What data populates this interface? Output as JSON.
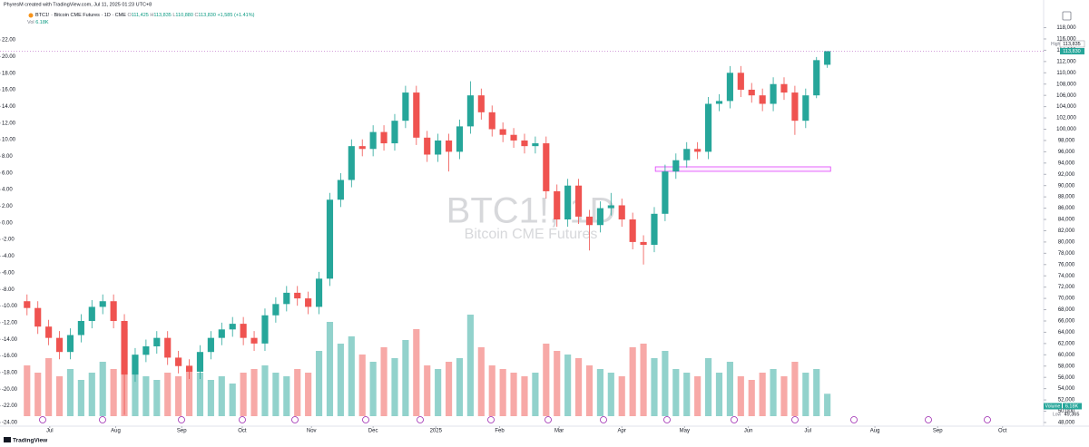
{
  "chart_data": {
    "type": "candlestick",
    "attribution": "PhyresM created with TradingView.com, Jul 11, 2025 01:23 UTC+8",
    "legend": {
      "symbol": "BTC1! · Bitcoin CME Futures · 1D · CME",
      "ohlc": [
        {
          "key": "O",
          "value": "111,425"
        },
        {
          "key": "H",
          "value": "113,835"
        },
        {
          "key": "L",
          "value": "110,880"
        },
        {
          "key": "C",
          "value": "113,830"
        }
      ],
      "change": "+1,585 (+1.41%)",
      "volume_key": "Vol",
      "volume_value": "6.18K"
    },
    "watermark": {
      "symbol": "BTC1!, 1D",
      "name": "Bitcoin CME Futures"
    },
    "price_labels": {
      "high_key": "High",
      "high_value": "113,835",
      "last_value": "113,830",
      "volume_key": "Volume",
      "volume_value": "6.18K",
      "low_key": "Low",
      "low_value": "49,365"
    },
    "logo": "TradingView",
    "up_color": "#26a69a",
    "down_color": "#ef5350",
    "open": [
      69500,
      68300,
      65000,
      63000,
      60500,
      63500,
      66000,
      68500,
      69500,
      66000,
      56500,
      60000,
      61500,
      63000,
      59500,
      58000,
      57000,
      60500,
      63000,
      64500,
      65500,
      63000,
      62000,
      67000,
      69000,
      71000,
      70000,
      68500,
      73500,
      87500,
      91000,
      97000,
      96500,
      99500,
      97500,
      101500,
      106500,
      98500,
      95500,
      98000,
      96000,
      100500,
      106000,
      103000,
      100000,
      99000,
      98000,
      97000,
      97500,
      89000,
      84000,
      90000,
      84500,
      83000,
      86000,
      86500,
      84000,
      80000,
      79500,
      85000,
      92500,
      94500,
      96500,
      96000,
      104500,
      105000,
      110000,
      107000,
      106000,
      104500,
      108000,
      106500,
      101500,
      106000,
      111425
    ],
    "high": [
      70700,
      69500,
      66200,
      64200,
      64700,
      67200,
      69700,
      70700,
      70700,
      67200,
      61200,
      62700,
      64200,
      64200,
      60700,
      59200,
      61700,
      64200,
      65700,
      66700,
      66700,
      64200,
      68200,
      70200,
      72200,
      72200,
      71200,
      74700,
      88700,
      92200,
      98200,
      98200,
      100700,
      100700,
      102700,
      107700,
      107700,
      99700,
      99200,
      99200,
      101700,
      108500,
      107200,
      104200,
      101200,
      100200,
      99200,
      98700,
      98700,
      90200,
      91200,
      91200,
      85700,
      87200,
      88700,
      87700,
      85200,
      81200,
      86200,
      93700,
      95700,
      97700,
      97700,
      105700,
      106200,
      111200,
      111200,
      108200,
      107200,
      109200,
      109200,
      107700,
      107200,
      112800,
      113835
    ],
    "low": [
      67000,
      63700,
      61700,
      59200,
      59200,
      62200,
      64700,
      67200,
      64700,
      49365,
      55200,
      58700,
      60200,
      58200,
      56700,
      55700,
      55700,
      59200,
      61700,
      63200,
      61700,
      60700,
      60700,
      65700,
      67700,
      68700,
      67200,
      67200,
      72200,
      86200,
      89700,
      95200,
      95200,
      96200,
      96200,
      100200,
      97200,
      94200,
      94200,
      92500,
      94700,
      99200,
      101700,
      98700,
      97700,
      96700,
      95700,
      95700,
      87700,
      82700,
      82700,
      83200,
      78500,
      81700,
      84700,
      82700,
      78700,
      76000,
      78200,
      83700,
      91200,
      93200,
      94700,
      94700,
      103200,
      103700,
      105700,
      104700,
      103200,
      103200,
      105200,
      99000,
      100200,
      105500,
      110880
    ],
    "close": [
      68300,
      65000,
      63000,
      60500,
      63500,
      66000,
      68500,
      69500,
      66000,
      56500,
      60000,
      61500,
      63000,
      59500,
      58000,
      57000,
      60500,
      63000,
      64500,
      65500,
      63000,
      62000,
      67000,
      69000,
      71000,
      70000,
      68500,
      73500,
      87500,
      91000,
      97000,
      96500,
      99500,
      97500,
      101500,
      106500,
      98500,
      95500,
      98000,
      96000,
      100500,
      106000,
      103000,
      100000,
      99000,
      98000,
      97000,
      97500,
      89000,
      84000,
      90000,
      84500,
      83000,
      86000,
      86500,
      84000,
      80000,
      79500,
      85000,
      92500,
      94500,
      96500,
      96000,
      104500,
      105000,
      110000,
      107000,
      106000,
      104500,
      108000,
      106500,
      101500,
      106000,
      112245,
      113830
    ],
    "volume": [
      14000,
      12000,
      16000,
      11000,
      13000,
      10000,
      12000,
      15000,
      13000,
      24000,
      17000,
      11000,
      10000,
      12000,
      11000,
      14000,
      12000,
      10000,
      11000,
      9000,
      12000,
      13000,
      14000,
      12000,
      11000,
      13000,
      12000,
      18000,
      26000,
      20000,
      22000,
      17000,
      15000,
      19000,
      16000,
      21000,
      24000,
      14000,
      13000,
      15000,
      16000,
      28000,
      19000,
      14000,
      13000,
      12000,
      11000,
      12000,
      20000,
      18000,
      17000,
      16000,
      14000,
      13000,
      12000,
      11000,
      19000,
      20000,
      16000,
      18000,
      13000,
      12000,
      11000,
      16000,
      12000,
      15000,
      11000,
      10000,
      12000,
      13000,
      11000,
      15000,
      12000,
      13000,
      6180
    ],
    "volume_ylim": [
      0,
      30000
    ],
    "xlim": [
      -2.5,
      94
    ],
    "xticks": [
      {
        "value": 2.1,
        "label": "Jul"
      },
      {
        "value": 8.2,
        "label": "Aug"
      },
      {
        "value": 14.3,
        "label": "Sep"
      },
      {
        "value": 19.9,
        "label": "Oct"
      },
      {
        "value": 26.3,
        "label": "Nov"
      },
      {
        "value": 32.0,
        "label": "Dec"
      },
      {
        "value": 37.8,
        "label": "2025"
      },
      {
        "value": 43.7,
        "label": "Feb"
      },
      {
        "value": 49.2,
        "label": "Mar"
      },
      {
        "value": 55.0,
        "label": "Apr"
      },
      {
        "value": 60.8,
        "label": "May"
      },
      {
        "value": 66.7,
        "label": "Jun"
      },
      {
        "value": 72.2,
        "label": "Jul"
      },
      {
        "value": 78.4,
        "label": "Aug"
      },
      {
        "value": 84.2,
        "label": "Sep"
      },
      {
        "value": 90.2,
        "label": "Oct"
      }
    ],
    "ylim": [
      47350,
      119050
    ],
    "yticks": [
      {
        "value": 48000,
        "label": "48,000"
      },
      {
        "value": 50000,
        "label": "50,000"
      },
      {
        "value": 52000,
        "label": "52,000"
      },
      {
        "value": 54000,
        "label": "54,000"
      },
      {
        "value": 56000,
        "label": "56,000"
      },
      {
        "value": 58000,
        "label": "58,000"
      },
      {
        "value": 60000,
        "label": "60,000"
      },
      {
        "value": 62000,
        "label": "62,000"
      },
      {
        "value": 64000,
        "label": "64,000"
      },
      {
        "value": 66000,
        "label": "66,000"
      },
      {
        "value": 68000,
        "label": "68,000"
      },
      {
        "value": 70000,
        "label": "70,000"
      },
      {
        "value": 72000,
        "label": "72,000"
      },
      {
        "value": 74000,
        "label": "74,000"
      },
      {
        "value": 76000,
        "label": "76,000"
      },
      {
        "value": 78000,
        "label": "78,000"
      },
      {
        "value": 80000,
        "label": "80,000"
      },
      {
        "value": 82000,
        "label": "82,000"
      },
      {
        "value": 84000,
        "label": "84,000"
      },
      {
        "value": 86000,
        "label": "86,000"
      },
      {
        "value": 88000,
        "label": "88,000"
      },
      {
        "value": 90000,
        "label": "90,000"
      },
      {
        "value": 92000,
        "label": "92,000"
      },
      {
        "value": 94000,
        "label": "94,000"
      },
      {
        "value": 96000,
        "label": "96,000"
      },
      {
        "value": 98000,
        "label": "98,000"
      },
      {
        "value": 100000,
        "label": "100,000"
      },
      {
        "value": 102000,
        "label": "102,000"
      },
      {
        "value": 104000,
        "label": "104,000"
      },
      {
        "value": 106000,
        "label": "106,000"
      },
      {
        "value": 108000,
        "label": "108,000"
      },
      {
        "value": 110000,
        "label": "110,000"
      },
      {
        "value": 112000,
        "label": "112,000"
      },
      {
        "value": 114000,
        "label": "114,000"
      },
      {
        "value": 116000,
        "label": "116,000"
      },
      {
        "value": 118000,
        "label": "118,000"
      }
    ],
    "y2lim": [
      -24.44,
      24.18
    ],
    "y2ticks": [
      {
        "value": -24,
        "label": "-24.00"
      },
      {
        "value": -22,
        "label": "-22.00"
      },
      {
        "value": -20,
        "label": "-20.00"
      },
      {
        "value": -18,
        "label": "-18.00"
      },
      {
        "value": -16,
        "label": "-16.00"
      },
      {
        "value": -14,
        "label": "-14.00"
      },
      {
        "value": -12,
        "label": "-12.00"
      },
      {
        "value": -10,
        "label": "-10.00"
      },
      {
        "value": -8,
        "label": "-8.00"
      },
      {
        "value": -6,
        "label": "-6.00"
      },
      {
        "value": -4,
        "label": "-4.00"
      },
      {
        "value": -2,
        "label": "-2.00"
      },
      {
        "value": 0,
        "label": "0.00"
      },
      {
        "value": 2,
        "label": "2.00"
      },
      {
        "value": 4,
        "label": "4.00"
      },
      {
        "value": 6,
        "label": "6.00"
      },
      {
        "value": 8,
        "label": "8.00"
      },
      {
        "value": 10,
        "label": "10.00"
      },
      {
        "value": 12,
        "label": "12.00"
      },
      {
        "value": 14,
        "label": "14.00"
      },
      {
        "value": 16,
        "label": "16.00"
      },
      {
        "value": 18,
        "label": "18.00"
      },
      {
        "value": 20,
        "label": "20.00"
      },
      {
        "value": 22,
        "label": "22.00"
      }
    ],
    "rectangle": {
      "x": [
        58.1,
        74.3
      ],
      "y": [
        92530,
        93330
      ],
      "color": "#e040fb"
    },
    "grid": false
  }
}
